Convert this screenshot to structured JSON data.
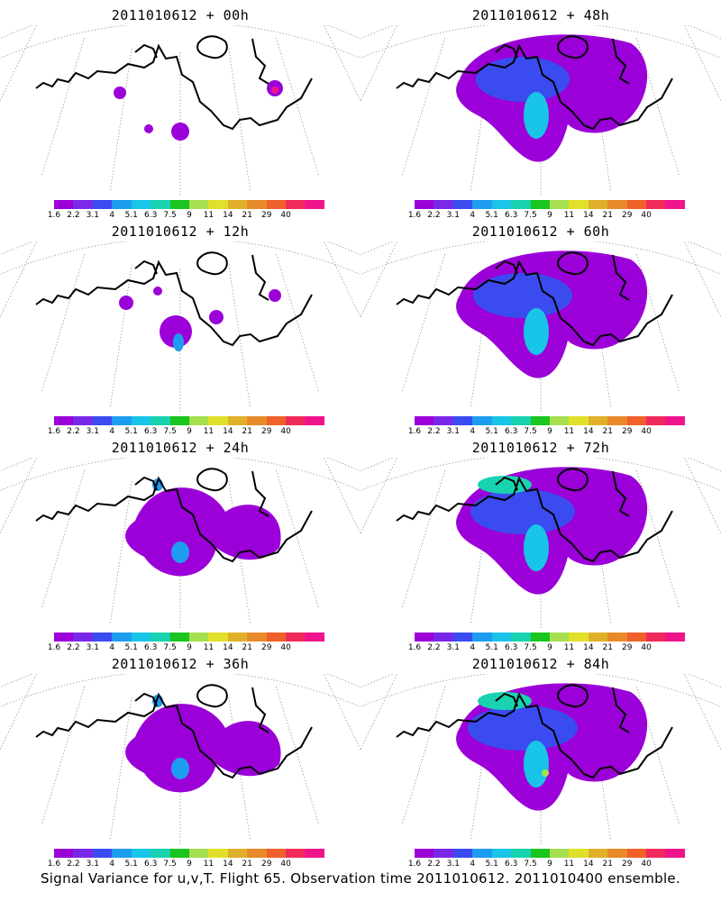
{
  "figure": {
    "caption": "Signal Variance for u,v,T. Flight 65. Observation time 2011010612. 2011010400 ensemble."
  },
  "colorbar": {
    "labels": [
      "1.6",
      "2.2",
      "3.1",
      "4",
      "5.1",
      "6.3",
      "7.5",
      "9",
      "11",
      "14",
      "21",
      "29",
      "40"
    ],
    "colors": [
      "#9b00d8",
      "#7a28e8",
      "#3a4cf0",
      "#1e9cf0",
      "#18c4e8",
      "#18d2b0",
      "#19c51e",
      "#a6e04e",
      "#e0e02a",
      "#e0b02a",
      "#e88a2a",
      "#f0602a",
      "#f02a5a",
      "#f0148c"
    ]
  },
  "panels": [
    {
      "title": "2011010612 + 00h",
      "coverage": "sparse-0"
    },
    {
      "title": "2011010612 + 48h",
      "coverage": "dense-48"
    },
    {
      "title": "2011010612 + 12h",
      "coverage": "sparse-12"
    },
    {
      "title": "2011010612 + 60h",
      "coverage": "dense-60"
    },
    {
      "title": "2011010612 + 24h",
      "coverage": "mid-24"
    },
    {
      "title": "2011010612 + 72h",
      "coverage": "dense-72"
    },
    {
      "title": "2011010612 + 36h",
      "coverage": "mid-36"
    },
    {
      "title": "2011010612 + 84h",
      "coverage": "dense-84"
    }
  ]
}
